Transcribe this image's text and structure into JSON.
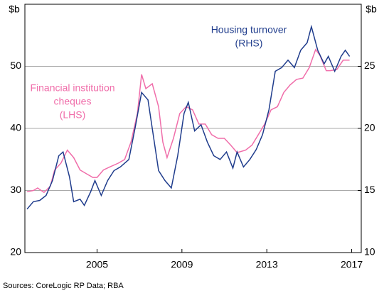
{
  "chart_data": {
    "type": "line",
    "y_unit": "$b",
    "y2_unit": "$b",
    "source": "Sources: CoreLogic RP Data; RBA",
    "xlim": [
      2001.6,
      2017.45
    ],
    "xticks": [
      2005,
      2009,
      2013,
      2017
    ],
    "ylim": [
      20,
      60
    ],
    "yticks": [
      20,
      30,
      40,
      50
    ],
    "y2lim": [
      10,
      30
    ],
    "y2ticks": [
      10,
      15,
      20,
      25
    ],
    "grid": true,
    "series": [
      {
        "label_lines": [
          "Financial institution",
          "cheques",
          "(LHS)"
        ],
        "color": "#f06eaa",
        "axis": "y",
        "x": [
          2001.7,
          2002.0,
          2002.2,
          2002.5,
          2002.8,
          2003.0,
          2003.3,
          2003.6,
          2003.9,
          2004.2,
          2004.5,
          2004.8,
          2005.0,
          2005.3,
          2005.6,
          2006.0,
          2006.3,
          2006.6,
          2006.9,
          2007.1,
          2007.3,
          2007.6,
          2007.9,
          2008.1,
          2008.3,
          2008.6,
          2008.9,
          2009.2,
          2009.5,
          2009.8,
          2010.1,
          2010.4,
          2010.7,
          2011.0,
          2011.3,
          2011.6,
          2012.0,
          2012.3,
          2012.6,
          2012.9,
          2013.2,
          2013.5,
          2013.8,
          2014.1,
          2014.4,
          2014.7,
          2015.0,
          2015.3,
          2015.5,
          2015.8,
          2016.0,
          2016.3,
          2016.6,
          2016.9
        ],
        "values": [
          29.8,
          30.0,
          30.4,
          29.7,
          30.7,
          33.3,
          34.4,
          36.5,
          35.3,
          33.3,
          32.7,
          32.1,
          32.1,
          33.3,
          33.8,
          34.4,
          35.0,
          37.8,
          42.4,
          48.7,
          46.4,
          47.2,
          43.5,
          37.8,
          35.3,
          38.4,
          42.4,
          43.5,
          43.0,
          40.7,
          40.7,
          39.0,
          38.4,
          38.4,
          37.3,
          36.1,
          36.5,
          37.3,
          39.0,
          40.7,
          43.0,
          43.5,
          45.8,
          47.0,
          47.9,
          48.1,
          49.8,
          52.7,
          51.8,
          49.3,
          49.3,
          49.5,
          51.0,
          51.0
        ]
      },
      {
        "label_lines": [
          "Housing turnover",
          "(RHS)"
        ],
        "color": "#1f3c8c",
        "axis": "y2",
        "x": [
          2001.7,
          2002.0,
          2002.3,
          2002.6,
          2002.9,
          2003.2,
          2003.4,
          2003.7,
          2003.9,
          2004.2,
          2004.4,
          2004.7,
          2004.9,
          2005.2,
          2005.5,
          2005.8,
          2006.1,
          2006.5,
          2006.8,
          2007.1,
          2007.4,
          2007.7,
          2007.9,
          2008.2,
          2008.5,
          2008.8,
          2009.1,
          2009.3,
          2009.6,
          2009.9,
          2010.2,
          2010.5,
          2010.8,
          2011.1,
          2011.4,
          2011.6,
          2011.9,
          2012.2,
          2012.5,
          2012.8,
          2013.1,
          2013.4,
          2013.7,
          2014.0,
          2014.3,
          2014.6,
          2014.9,
          2015.1,
          2015.4,
          2015.7,
          2015.9,
          2016.2,
          2016.5,
          2016.7,
          2016.9
        ],
        "values": [
          13.5,
          14.1,
          14.2,
          14.6,
          15.8,
          17.8,
          18.1,
          16.1,
          14.1,
          14.3,
          13.8,
          14.9,
          15.8,
          14.6,
          15.8,
          16.6,
          16.9,
          17.5,
          20.1,
          22.9,
          22.3,
          18.9,
          16.6,
          15.8,
          15.2,
          17.8,
          21.2,
          22.1,
          19.8,
          20.3,
          18.9,
          17.8,
          17.5,
          18.1,
          16.8,
          18.1,
          16.9,
          17.5,
          18.3,
          19.5,
          21.5,
          24.6,
          24.9,
          25.5,
          24.9,
          26.3,
          26.9,
          28.2,
          26.3,
          25.2,
          25.8,
          24.6,
          25.8,
          26.3,
          25.8
        ]
      }
    ]
  }
}
